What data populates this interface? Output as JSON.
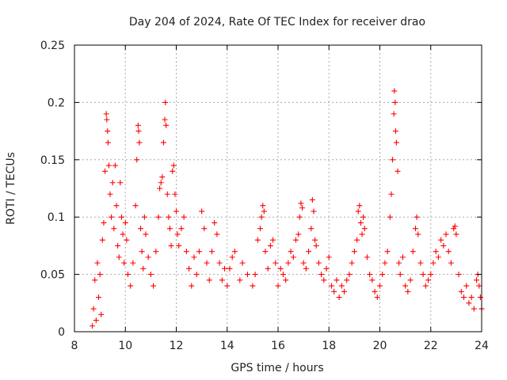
{
  "chart_data": {
    "type": "scatter",
    "title": "Day 204 of 2024, Rate Of TEC Index for receiver drao",
    "xlabel": "GPS time / hours",
    "ylabel": "ROTI / TECUs",
    "xlim": [
      8,
      24
    ],
    "ylim": [
      0,
      0.25
    ],
    "x_ticks": [
      "8",
      "10",
      "12",
      "14",
      "16",
      "18",
      "20",
      "22",
      "24"
    ],
    "y_ticks": [
      "0",
      "0.05",
      "0.1",
      "0.15",
      "0.2",
      "0.25"
    ],
    "grid": true,
    "marker": "plus",
    "color": "#ff0000",
    "series": [
      {
        "points": [
          [
            8.7,
            0.005
          ],
          [
            8.75,
            0.02
          ],
          [
            8.8,
            0.045
          ],
          [
            8.85,
            0.01
          ],
          [
            8.9,
            0.06
          ],
          [
            8.95,
            0.03
          ],
          [
            9.0,
            0.05
          ],
          [
            9.05,
            0.015
          ],
          [
            9.1,
            0.08
          ],
          [
            9.15,
            0.095
          ],
          [
            9.2,
            0.14
          ],
          [
            9.25,
            0.19
          ],
          [
            9.27,
            0.185
          ],
          [
            9.3,
            0.175
          ],
          [
            9.32,
            0.165
          ],
          [
            9.35,
            0.145
          ],
          [
            9.4,
            0.12
          ],
          [
            9.45,
            0.1
          ],
          [
            9.5,
            0.13
          ],
          [
            9.55,
            0.09
          ],
          [
            9.6,
            0.145
          ],
          [
            9.65,
            0.11
          ],
          [
            9.7,
            0.075
          ],
          [
            9.75,
            0.065
          ],
          [
            9.8,
            0.13
          ],
          [
            9.85,
            0.1
          ],
          [
            9.9,
            0.085
          ],
          [
            9.95,
            0.06
          ],
          [
            10.0,
            0.095
          ],
          [
            10.05,
            0.08
          ],
          [
            10.1,
            0.05
          ],
          [
            10.2,
            0.04
          ],
          [
            10.3,
            0.06
          ],
          [
            10.4,
            0.11
          ],
          [
            10.45,
            0.15
          ],
          [
            10.5,
            0.18
          ],
          [
            10.52,
            0.175
          ],
          [
            10.55,
            0.165
          ],
          [
            10.6,
            0.09
          ],
          [
            10.65,
            0.07
          ],
          [
            10.7,
            0.055
          ],
          [
            10.75,
            0.1
          ],
          [
            10.8,
            0.085
          ],
          [
            10.9,
            0.065
          ],
          [
            11.0,
            0.05
          ],
          [
            11.1,
            0.04
          ],
          [
            11.2,
            0.07
          ],
          [
            11.3,
            0.1
          ],
          [
            11.35,
            0.125
          ],
          [
            11.4,
            0.13
          ],
          [
            11.45,
            0.135
          ],
          [
            11.5,
            0.165
          ],
          [
            11.55,
            0.185
          ],
          [
            11.57,
            0.2
          ],
          [
            11.6,
            0.18
          ],
          [
            11.65,
            0.12
          ],
          [
            11.7,
            0.1
          ],
          [
            11.75,
            0.09
          ],
          [
            11.8,
            0.075
          ],
          [
            11.85,
            0.14
          ],
          [
            11.9,
            0.145
          ],
          [
            11.95,
            0.12
          ],
          [
            12.0,
            0.105
          ],
          [
            12.05,
            0.085
          ],
          [
            12.1,
            0.075
          ],
          [
            12.2,
            0.09
          ],
          [
            12.3,
            0.1
          ],
          [
            12.4,
            0.07
          ],
          [
            12.5,
            0.055
          ],
          [
            12.6,
            0.04
          ],
          [
            12.7,
            0.065
          ],
          [
            12.8,
            0.05
          ],
          [
            12.9,
            0.07
          ],
          [
            13.0,
            0.105
          ],
          [
            13.1,
            0.09
          ],
          [
            13.2,
            0.06
          ],
          [
            13.3,
            0.045
          ],
          [
            13.4,
            0.07
          ],
          [
            13.5,
            0.095
          ],
          [
            13.6,
            0.085
          ],
          [
            13.7,
            0.06
          ],
          [
            13.8,
            0.045
          ],
          [
            13.9,
            0.055
          ],
          [
            14.0,
            0.04
          ],
          [
            14.1,
            0.055
          ],
          [
            14.2,
            0.065
          ],
          [
            14.3,
            0.07
          ],
          [
            14.5,
            0.045
          ],
          [
            14.6,
            0.06
          ],
          [
            14.8,
            0.05
          ],
          [
            15.0,
            0.04
          ],
          [
            15.1,
            0.05
          ],
          [
            15.2,
            0.08
          ],
          [
            15.3,
            0.09
          ],
          [
            15.35,
            0.1
          ],
          [
            15.4,
            0.11
          ],
          [
            15.45,
            0.105
          ],
          [
            15.5,
            0.07
          ],
          [
            15.6,
            0.055
          ],
          [
            15.7,
            0.075
          ],
          [
            15.8,
            0.08
          ],
          [
            15.9,
            0.06
          ],
          [
            16.0,
            0.04
          ],
          [
            16.1,
            0.055
          ],
          [
            16.2,
            0.05
          ],
          [
            16.3,
            0.045
          ],
          [
            16.4,
            0.06
          ],
          [
            16.5,
            0.07
          ],
          [
            16.6,
            0.065
          ],
          [
            16.7,
            0.08
          ],
          [
            16.8,
            0.085
          ],
          [
            16.85,
            0.1
          ],
          [
            16.9,
            0.112
          ],
          [
            16.95,
            0.108
          ],
          [
            17.0,
            0.06
          ],
          [
            17.1,
            0.055
          ],
          [
            17.2,
            0.07
          ],
          [
            17.3,
            0.09
          ],
          [
            17.35,
            0.115
          ],
          [
            17.4,
            0.105
          ],
          [
            17.45,
            0.08
          ],
          [
            17.5,
            0.075
          ],
          [
            17.6,
            0.06
          ],
          [
            17.7,
            0.05
          ],
          [
            17.8,
            0.045
          ],
          [
            17.9,
            0.055
          ],
          [
            18.0,
            0.065
          ],
          [
            18.1,
            0.04
          ],
          [
            18.2,
            0.035
          ],
          [
            18.3,
            0.045
          ],
          [
            18.4,
            0.03
          ],
          [
            18.5,
            0.04
          ],
          [
            18.6,
            0.035
          ],
          [
            18.7,
            0.045
          ],
          [
            18.8,
            0.05
          ],
          [
            18.9,
            0.06
          ],
          [
            19.0,
            0.07
          ],
          [
            19.1,
            0.08
          ],
          [
            19.15,
            0.105
          ],
          [
            19.2,
            0.11
          ],
          [
            19.25,
            0.095
          ],
          [
            19.3,
            0.085
          ],
          [
            19.35,
            0.1
          ],
          [
            19.4,
            0.09
          ],
          [
            19.5,
            0.065
          ],
          [
            19.6,
            0.05
          ],
          [
            19.7,
            0.045
          ],
          [
            19.8,
            0.035
          ],
          [
            19.9,
            0.03
          ],
          [
            20.0,
            0.04
          ],
          [
            20.1,
            0.05
          ],
          [
            20.2,
            0.06
          ],
          [
            20.3,
            0.07
          ],
          [
            20.4,
            0.1
          ],
          [
            20.45,
            0.12
          ],
          [
            20.5,
            0.15
          ],
          [
            20.55,
            0.19
          ],
          [
            20.57,
            0.21
          ],
          [
            20.6,
            0.2
          ],
          [
            20.62,
            0.175
          ],
          [
            20.65,
            0.165
          ],
          [
            20.7,
            0.14
          ],
          [
            20.75,
            0.06
          ],
          [
            20.8,
            0.05
          ],
          [
            20.9,
            0.065
          ],
          [
            21.0,
            0.04
          ],
          [
            21.1,
            0.035
          ],
          [
            21.2,
            0.045
          ],
          [
            21.3,
            0.07
          ],
          [
            21.4,
            0.09
          ],
          [
            21.45,
            0.1
          ],
          [
            21.5,
            0.085
          ],
          [
            21.6,
            0.06
          ],
          [
            21.7,
            0.05
          ],
          [
            21.8,
            0.04
          ],
          [
            21.9,
            0.045
          ],
          [
            22.0,
            0.05
          ],
          [
            22.1,
            0.06
          ],
          [
            22.2,
            0.07
          ],
          [
            22.3,
            0.065
          ],
          [
            22.4,
            0.08
          ],
          [
            22.5,
            0.075
          ],
          [
            22.6,
            0.085
          ],
          [
            22.7,
            0.07
          ],
          [
            22.8,
            0.06
          ],
          [
            22.9,
            0.09
          ],
          [
            22.95,
            0.092
          ],
          [
            23.0,
            0.085
          ],
          [
            23.1,
            0.05
          ],
          [
            23.2,
            0.035
          ],
          [
            23.3,
            0.03
          ],
          [
            23.4,
            0.04
          ],
          [
            23.5,
            0.025
          ],
          [
            23.6,
            0.03
          ],
          [
            23.7,
            0.02
          ],
          [
            23.8,
            0.045
          ],
          [
            23.85,
            0.05
          ],
          [
            23.9,
            0.04
          ],
          [
            23.95,
            0.03
          ],
          [
            24.0,
            0.02
          ]
        ]
      }
    ]
  }
}
